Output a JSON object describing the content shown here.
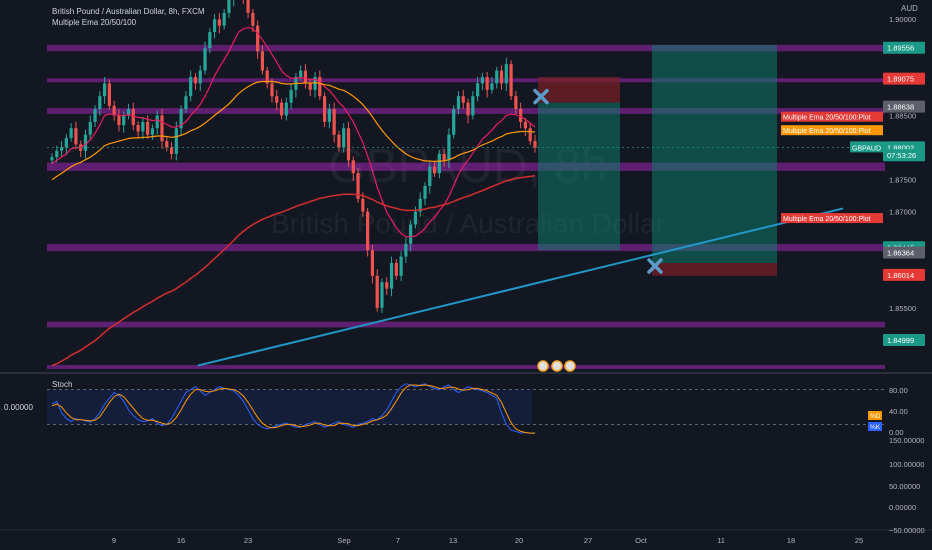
{
  "header": {
    "symbol_line": "British Pound / Australian Dollar, 8h, FXCM",
    "indicator_line": "Multiple Ema 20/50/100"
  },
  "watermark": {
    "symbol": "GBPAUD, 8h",
    "name": "British Pound / Australian Dollar"
  },
  "currency": "AUD",
  "colors": {
    "background": "#131722",
    "up_candle": "#26a69a",
    "down_candle": "#ef5350",
    "zone": "#9c27b0",
    "ema20": "#e91e63",
    "ema50": "#ff9800",
    "ema100": "#d32f2f",
    "trendline": "#2196c7",
    "stoch_k": "#2962ff",
    "stoch_d": "#ff9800",
    "long_profit": "#0e7a69",
    "long_loss": "#7a1f23",
    "marker": "#5b9bc7"
  },
  "chart_data": {
    "type": "candlestick",
    "title": "British Pound / Australian Dollar, 8h, FXCM",
    "y_range": [
      1.845,
      1.903
    ],
    "x_ticks": [
      "9",
      "16",
      "23",
      "Sep",
      "7",
      "13",
      "20",
      "27",
      "Oct",
      "11",
      "18",
      "25"
    ],
    "price_ticks": [
      "1.90000",
      "1.88500",
      "1.87500",
      "1.87000",
      "1.85500"
    ],
    "price_labels": [
      {
        "text": "1.89556",
        "value": 1.89556,
        "bg": "#1a9a86"
      },
      {
        "text": "1.89075",
        "value": 1.89075,
        "bg": "#e53935"
      },
      {
        "text": "1.88638",
        "value": 1.88638,
        "bg": "#5d606b"
      },
      {
        "text": "1.88002",
        "value": 1.88002,
        "bg": "#1a9a86"
      },
      {
        "text": "07:53:26",
        "value": 1.8788,
        "bg": "#1a9a86"
      },
      {
        "text": "1.86445",
        "value": 1.86445,
        "bg": "#1a9a86"
      },
      {
        "text": "1.86364",
        "value": 1.86364,
        "bg": "#5d606b"
      },
      {
        "text": "1.86014",
        "value": 1.86014,
        "bg": "#e53935"
      },
      {
        "text": "1.84999",
        "value": 1.84999,
        "bg": "#1a9a86"
      }
    ],
    "ema_labels": [
      {
        "text": "Multiple Ema 20/50/100:Plot",
        "value": 1.8848,
        "bg": "#e53935"
      },
      {
        "text": "Multiple Ema 20/50/100:Plot",
        "value": 1.8827,
        "bg": "#ff9800"
      },
      {
        "text": "Multiple Ema 20/50/100:Plot",
        "value": 1.869,
        "bg": "#e53935"
      }
    ],
    "symbol_tag": {
      "text": "GBPAUD",
      "value": 1.88002
    },
    "zones": [
      {
        "value": 1.8955,
        "thickness": 0.001
      },
      {
        "value": 1.8905,
        "thickness": 0.0006
      },
      {
        "value": 1.8857,
        "thickness": 0.0009
      },
      {
        "value": 1.877,
        "thickness": 0.0013
      },
      {
        "value": 1.8644,
        "thickness": 0.0011
      },
      {
        "value": 1.8524,
        "thickness": 0.0009
      },
      {
        "value": 1.8458,
        "thickness": 0.0006
      }
    ],
    "closes": [
      1.8785,
      1.8795,
      1.88,
      1.8815,
      1.883,
      1.8805,
      1.8795,
      1.882,
      1.884,
      1.886,
      1.888,
      1.89,
      1.8865,
      1.885,
      1.8835,
      1.885,
      1.886,
      1.8835,
      1.8825,
      1.884,
      1.882,
      1.883,
      1.885,
      1.881,
      1.88,
      1.879,
      1.883,
      1.886,
      1.888,
      1.891,
      1.89,
      1.892,
      1.8955,
      1.898,
      1.9,
      1.899,
      1.901,
      1.903,
      1.907,
      1.908,
      1.903,
      1.901,
      1.899,
      1.895,
      1.892,
      1.89,
      1.888,
      1.887,
      1.885,
      1.887,
      1.889,
      1.891,
      1.892,
      1.89,
      1.889,
      1.891,
      1.888,
      1.884,
      1.886,
      1.882,
      1.88,
      1.883,
      1.878,
      1.876,
      1.872,
      1.87,
      1.864,
      1.86,
      1.855,
      1.859,
      1.858,
      1.862,
      1.86,
      1.863,
      1.865,
      1.868,
      1.87,
      1.872,
      1.874,
      1.877,
      1.876,
      1.879,
      1.878,
      1.882,
      1.886,
      1.888,
      1.887,
      1.885,
      1.888,
      1.89,
      1.891,
      1.889,
      1.89,
      1.892,
      1.89,
      1.893,
      1.888,
      1.886,
      1.884,
      1.883,
      1.881,
      1.88
    ],
    "ema20": [
      1.8775,
      1.878,
      1.8785,
      1.879,
      1.8798,
      1.88,
      1.88,
      1.8805,
      1.8812,
      1.8822,
      1.8835,
      1.885,
      1.8852,
      1.8852,
      1.885,
      1.885,
      1.8851,
      1.8849,
      1.8847,
      1.8846,
      1.8844,
      1.8842,
      1.8843,
      1.884,
      1.8836,
      1.8832,
      1.8832,
      1.8835,
      1.884,
      1.885,
      1.8858,
      1.8867,
      1.888,
      1.8895,
      1.8912,
      1.8925,
      1.8937,
      1.895,
      1.8965,
      1.898,
      1.8985,
      1.8987,
      1.8985,
      1.8978,
      1.8968,
      1.8957,
      1.8945,
      1.8933,
      1.892,
      1.8912,
      1.8908,
      1.8908,
      1.8909,
      1.8908,
      1.8906,
      1.8906,
      1.8903,
      1.8895,
      1.8889,
      1.888,
      1.887,
      1.8863,
      1.8852,
      1.884,
      1.8824,
      1.8808,
      1.8787,
      1.8764,
      1.8738,
      1.8718,
      1.8699,
      1.8687,
      1.8675,
      1.8666,
      1.8661,
      1.8661,
      1.8662,
      1.8667,
      1.8674,
      1.8684,
      1.8691,
      1.8702,
      1.871,
      1.8724,
      1.8741,
      1.8758,
      1.8771,
      1.878,
      1.8791,
      1.8802,
      1.8813,
      1.882,
      1.8827,
      1.8836,
      1.8842,
      1.885,
      1.8852,
      1.8851,
      1.8848,
      1.8844,
      1.8838,
      1.8832
    ],
    "ema50": [
      1.875,
      1.8755,
      1.876,
      1.8765,
      1.877,
      1.8774,
      1.8777,
      1.8781,
      1.8785,
      1.879,
      1.8796,
      1.8803,
      1.8806,
      1.8808,
      1.881,
      1.8812,
      1.8814,
      1.8815,
      1.8815,
      1.8816,
      1.8816,
      1.8817,
      1.8818,
      1.8818,
      1.8817,
      1.8816,
      1.8817,
      1.8819,
      1.8822,
      1.8826,
      1.8829,
      1.8833,
      1.8838,
      1.8844,
      1.885,
      1.8856,
      1.8862,
      1.8868,
      1.8876,
      1.8884,
      1.889,
      1.8895,
      1.8899,
      1.8902,
      1.8903,
      1.8903,
      1.8903,
      1.8902,
      1.89,
      1.8899,
      1.8899,
      1.89,
      1.89,
      1.8901,
      1.89,
      1.8901,
      1.89,
      1.8898,
      1.8897,
      1.8894,
      1.8891,
      1.8889,
      1.8885,
      1.888,
      1.8874,
      1.8867,
      1.8858,
      1.8848,
      1.8837,
      1.8827,
      1.8818,
      1.881,
      1.8802,
      1.8796,
      1.879,
      1.8786,
      1.8783,
      1.8781,
      1.8779,
      1.8779,
      1.8778,
      1.8779,
      1.8779,
      1.8781,
      1.8784,
      1.8788,
      1.8791,
      1.8793,
      1.8796,
      1.88,
      1.8804,
      1.8807,
      1.881,
      1.8814,
      1.8817,
      1.8821,
      1.8823,
      1.8824,
      1.8825,
      1.8825,
      1.8825,
      1.8824
    ],
    "ema100": [
      1.846,
      1.8463,
      1.8467,
      1.8471,
      1.8476,
      1.848,
      1.8484,
      1.8489,
      1.8494,
      1.8499,
      1.8505,
      1.8512,
      1.8518,
      1.8523,
      1.8528,
      1.8533,
      1.8538,
      1.8543,
      1.8547,
      1.8552,
      1.8556,
      1.856,
      1.8565,
      1.8569,
      1.8573,
      1.8576,
      1.858,
      1.8585,
      1.859,
      1.8596,
      1.8601,
      1.8607,
      1.8613,
      1.862,
      1.8627,
      1.8634,
      1.8641,
      1.8648,
      1.8655,
      1.8663,
      1.8669,
      1.8675,
      1.868,
      1.8684,
      1.8688,
      1.8691,
      1.8694,
      1.8697,
      1.8699,
      1.8702,
      1.8705,
      1.8708,
      1.8711,
      1.8713,
      1.8716,
      1.8718,
      1.8721,
      1.8722,
      1.8724,
      1.8725,
      1.8726,
      1.8727,
      1.8727,
      1.8727,
      1.8726,
      1.8725,
      1.8722,
      1.8719,
      1.8715,
      1.8712,
      1.8709,
      1.8707,
      1.8705,
      1.8703,
      1.8702,
      1.8702,
      1.8702,
      1.8703,
      1.8704,
      1.8706,
      1.8707,
      1.8709,
      1.8711,
      1.8713,
      1.8716,
      1.8719,
      1.8722,
      1.8724,
      1.8727,
      1.873,
      1.8733,
      1.8736,
      1.8739,
      1.8742,
      1.8745,
      1.8748,
      1.875,
      1.8752,
      1.8753,
      1.8754,
      1.8755,
      1.8756
    ],
    "trendline": [
      {
        "x": 0.18,
        "y": 1.846
      },
      {
        "x": 0.95,
        "y": 1.8705
      }
    ],
    "positions": [
      {
        "type": "short",
        "entry": 1.887,
        "stop": 1.891,
        "target": 1.864
      },
      {
        "type": "long",
        "entry": 1.862,
        "stop": 1.86,
        "target": 1.896
      }
    ],
    "stoch": {
      "title": "Stoch",
      "zero_label": "0.00000",
      "ticks": [
        "80.00",
        "40.00",
        "0.00",
        "150.00000",
        "100.00000",
        "50.00000",
        "0.00000",
        "−50.00000"
      ],
      "k": [
        55,
        60,
        40,
        30,
        25,
        30,
        28,
        26,
        24,
        30,
        40,
        55,
        65,
        75,
        70,
        60,
        45,
        35,
        28,
        25,
        26,
        30,
        22,
        18,
        20,
        30,
        45,
        60,
        75,
        80,
        85,
        78,
        70,
        75,
        80,
        85,
        82,
        80,
        78,
        70,
        60,
        45,
        30,
        20,
        15,
        12,
        15,
        18,
        20,
        22,
        18,
        15,
        15,
        20,
        22,
        25,
        20,
        15,
        18,
        22,
        25,
        20,
        18,
        15,
        20,
        22,
        25,
        30,
        28,
        35,
        45,
        60,
        75,
        85,
        90,
        88,
        85,
        88,
        90,
        85,
        82,
        80,
        85,
        88,
        80,
        75,
        80,
        85,
        82,
        80,
        78,
        75,
        70,
        65,
        40,
        20,
        10,
        8,
        5,
        6,
        5,
        5
      ],
      "d": [
        52,
        55,
        50,
        40,
        32,
        28,
        28,
        27,
        26,
        27,
        33,
        45,
        58,
        68,
        72,
        68,
        58,
        48,
        38,
        30,
        27,
        27,
        25,
        22,
        20,
        23,
        32,
        45,
        60,
        72,
        80,
        80,
        77,
        76,
        78,
        81,
        82,
        81,
        80,
        76,
        69,
        58,
        45,
        32,
        22,
        16,
        14,
        15,
        18,
        20,
        20,
        18,
        16,
        17,
        19,
        22,
        22,
        19,
        18,
        18,
        22,
        22,
        21,
        18,
        18,
        20,
        22,
        26,
        28,
        31,
        36,
        47,
        60,
        74,
        84,
        88,
        88,
        87,
        88,
        87,
        85,
        82,
        82,
        84,
        84,
        81,
        79,
        80,
        82,
        82,
        80,
        78,
        74,
        70,
        58,
        40,
        23,
        12,
        8,
        6,
        5,
        5
      ],
      "k_label": "%K",
      "d_label": "%D"
    }
  }
}
